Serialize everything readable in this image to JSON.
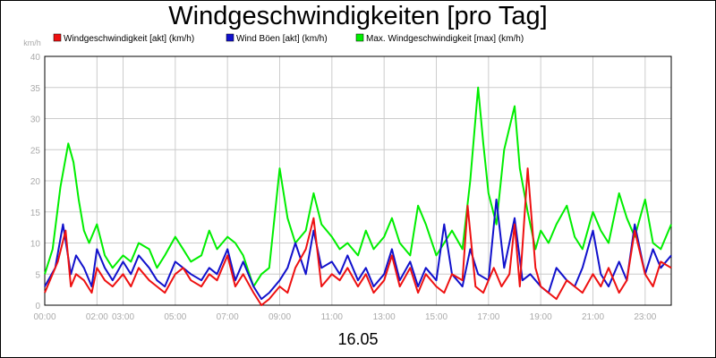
{
  "chart_data": {
    "type": "line",
    "title": "Windgeschwindigkeiten [pro Tag]",
    "ylabel": "km/h",
    "xlabel": "16.05",
    "ylim": [
      0,
      40
    ],
    "yticks": [
      0,
      5,
      10,
      15,
      20,
      25,
      30,
      35,
      40
    ],
    "xlim": [
      0,
      24
    ],
    "xticks": [
      {
        "label": "00:00",
        "value": 0
      },
      {
        "label": "02:00",
        "value": 2
      },
      {
        "label": "03:00",
        "value": 3
      },
      {
        "label": "05:00",
        "value": 5
      },
      {
        "label": "07:00",
        "value": 7
      },
      {
        "label": "09:00",
        "value": 9
      },
      {
        "label": "11:00",
        "value": 11
      },
      {
        "label": "13:00",
        "value": 13
      },
      {
        "label": "15:00",
        "value": 15
      },
      {
        "label": "17:00",
        "value": 17
      },
      {
        "label": "19:00",
        "value": 19
      },
      {
        "label": "21:00",
        "value": 21
      },
      {
        "label": "23:00",
        "value": 23
      }
    ],
    "grid": true,
    "legend_position": "top",
    "series": [
      {
        "name": "Windgeschwindigkeit [akt] (km/h)",
        "color": "#ee1111",
        "x": [
          0,
          0.5,
          0.8,
          1.0,
          1.2,
          1.5,
          1.8,
          2.0,
          2.3,
          2.6,
          3.0,
          3.3,
          3.6,
          4.0,
          4.3,
          4.6,
          5.0,
          5.3,
          5.6,
          6.0,
          6.3,
          6.6,
          7.0,
          7.3,
          7.6,
          8.0,
          8.3,
          8.6,
          9.0,
          9.3,
          9.6,
          10.0,
          10.3,
          10.6,
          11.0,
          11.3,
          11.6,
          12.0,
          12.3,
          12.6,
          13.0,
          13.3,
          13.6,
          14.0,
          14.3,
          14.6,
          15.0,
          15.3,
          15.6,
          16.0,
          16.2,
          16.5,
          16.8,
          17.0,
          17.2,
          17.5,
          17.8,
          18.0,
          18.2,
          18.5,
          18.8,
          19.0,
          19.3,
          19.6,
          20.0,
          20.3,
          20.6,
          21.0,
          21.3,
          21.6,
          22.0,
          22.3,
          22.6,
          23.0,
          23.3,
          23.6,
          24.0
        ],
        "values": [
          2,
          7,
          12,
          3,
          5,
          4,
          2,
          6,
          4,
          3,
          5,
          3,
          6,
          4,
          3,
          2,
          5,
          6,
          4,
          3,
          5,
          4,
          8,
          3,
          5,
          2,
          0,
          1,
          3,
          2,
          6,
          9,
          14,
          3,
          5,
          4,
          6,
          3,
          5,
          2,
          4,
          8,
          3,
          6,
          2,
          5,
          3,
          2,
          5,
          4,
          16,
          3,
          2,
          4,
          6,
          3,
          5,
          13,
          3,
          22,
          6,
          3,
          2,
          1,
          4,
          3,
          2,
          5,
          3,
          6,
          2,
          4,
          12,
          5,
          3,
          7,
          6
        ]
      },
      {
        "name": "Wind Böen [akt] (km/h)",
        "color": "#1111cc",
        "x": [
          0,
          0.4,
          0.7,
          1.0,
          1.2,
          1.5,
          1.8,
          2.0,
          2.3,
          2.6,
          3.0,
          3.3,
          3.6,
          4.0,
          4.3,
          4.6,
          5.0,
          5.3,
          5.6,
          6.0,
          6.3,
          6.6,
          7.0,
          7.3,
          7.6,
          8.0,
          8.3,
          8.6,
          9.0,
          9.3,
          9.6,
          10.0,
          10.3,
          10.6,
          11.0,
          11.3,
          11.6,
          12.0,
          12.3,
          12.6,
          13.0,
          13.3,
          13.6,
          14.0,
          14.3,
          14.6,
          15.0,
          15.3,
          15.6,
          16.0,
          16.3,
          16.6,
          17.0,
          17.3,
          17.6,
          18.0,
          18.3,
          18.6,
          19.0,
          19.3,
          19.6,
          20.0,
          20.3,
          20.6,
          21.0,
          21.3,
          21.6,
          22.0,
          22.3,
          22.6,
          23.0,
          23.3,
          23.6,
          24.0
        ],
        "values": [
          3,
          6,
          13,
          5,
          8,
          6,
          3,
          9,
          6,
          4,
          7,
          5,
          8,
          6,
          4,
          3,
          7,
          6,
          5,
          4,
          6,
          5,
          9,
          4,
          7,
          3,
          1,
          2,
          4,
          6,
          10,
          5,
          12,
          6,
          7,
          5,
          8,
          4,
          6,
          3,
          5,
          9,
          4,
          7,
          3,
          6,
          4,
          13,
          5,
          3,
          9,
          5,
          4,
          17,
          6,
          14,
          4,
          5,
          3,
          2,
          6,
          4,
          3,
          6,
          12,
          5,
          3,
          7,
          4,
          13,
          5,
          9,
          6,
          8
        ]
      },
      {
        "name": "Max. Windgeschwindigkeit [max] (km/h)",
        "color": "#00ee00",
        "x": [
          0,
          0.3,
          0.6,
          0.9,
          1.1,
          1.3,
          1.5,
          1.7,
          2.0,
          2.3,
          2.6,
          3.0,
          3.3,
          3.6,
          4.0,
          4.3,
          4.6,
          5.0,
          5.3,
          5.6,
          6.0,
          6.3,
          6.6,
          7.0,
          7.3,
          7.6,
          8.0,
          8.3,
          8.6,
          9.0,
          9.3,
          9.6,
          10.0,
          10.3,
          10.6,
          11.0,
          11.3,
          11.6,
          12.0,
          12.3,
          12.6,
          13.0,
          13.3,
          13.6,
          14.0,
          14.3,
          14.6,
          15.0,
          15.3,
          15.6,
          16.0,
          16.3,
          16.6,
          16.8,
          17.0,
          17.3,
          17.6,
          18.0,
          18.2,
          18.5,
          18.8,
          19.0,
          19.3,
          19.6,
          20.0,
          20.3,
          20.6,
          21.0,
          21.3,
          21.6,
          22.0,
          22.3,
          22.6,
          23.0,
          23.3,
          23.6,
          24.0
        ],
        "values": [
          5,
          9,
          19,
          26,
          23,
          17,
          12,
          10,
          13,
          8,
          6,
          8,
          7,
          10,
          9,
          6,
          8,
          11,
          9,
          7,
          8,
          12,
          9,
          11,
          10,
          8,
          3,
          5,
          6,
          22,
          14,
          10,
          12,
          18,
          13,
          11,
          9,
          10,
          8,
          12,
          9,
          11,
          14,
          10,
          8,
          16,
          13,
          8,
          10,
          12,
          9,
          20,
          35,
          26,
          18,
          13,
          25,
          32,
          22,
          15,
          9,
          12,
          10,
          13,
          16,
          11,
          9,
          15,
          12,
          10,
          18,
          14,
          11,
          17,
          10,
          9,
          13
        ]
      }
    ]
  }
}
